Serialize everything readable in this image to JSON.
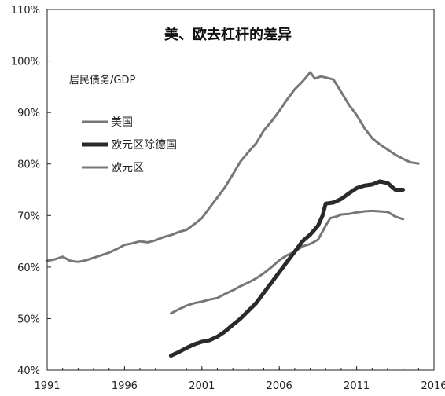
{
  "chart_data": {
    "type": "line",
    "title": "美、欧去杠杆的差异",
    "ylabel": "居民债务/GDP",
    "xlabel": "",
    "xlim": [
      1991,
      2016
    ],
    "ylim": [
      40,
      110
    ],
    "x_ticks": [
      "1991",
      "1996",
      "2001",
      "2006",
      "2011",
      "2016"
    ],
    "y_ticks": [
      "40%",
      "50%",
      "60%",
      "70%",
      "80%",
      "90%",
      "100%",
      "110%"
    ],
    "legend_position": "upper-left",
    "grid": false,
    "series": [
      {
        "name": "美国",
        "color": "#777777",
        "width": 3,
        "points": [
          [
            1991.0,
            61.2
          ],
          [
            1991.5,
            61.5
          ],
          [
            1992.0,
            62.0
          ],
          [
            1992.5,
            61.2
          ],
          [
            1993.0,
            61.0
          ],
          [
            1993.5,
            61.3
          ],
          [
            1994.0,
            61.8
          ],
          [
            1994.5,
            62.3
          ],
          [
            1995.0,
            62.8
          ],
          [
            1995.5,
            63.5
          ],
          [
            1996.0,
            64.3
          ],
          [
            1996.5,
            64.6
          ],
          [
            1997.0,
            65.0
          ],
          [
            1997.5,
            64.8
          ],
          [
            1998.0,
            65.2
          ],
          [
            1998.5,
            65.8
          ],
          [
            1999.0,
            66.2
          ],
          [
            1999.5,
            66.8
          ],
          [
            2000.0,
            67.2
          ],
          [
            2000.5,
            68.3
          ],
          [
            2001.0,
            69.5
          ],
          [
            2001.5,
            71.5
          ],
          [
            2002.0,
            73.5
          ],
          [
            2002.5,
            75.5
          ],
          [
            2003.0,
            78.0
          ],
          [
            2003.5,
            80.5
          ],
          [
            2004.0,
            82.3
          ],
          [
            2004.5,
            84.0
          ],
          [
            2005.0,
            86.5
          ],
          [
            2005.5,
            88.3
          ],
          [
            2006.0,
            90.3
          ],
          [
            2006.5,
            92.5
          ],
          [
            2007.0,
            94.5
          ],
          [
            2007.5,
            96.0
          ],
          [
            2008.0,
            97.8
          ],
          [
            2008.3,
            96.6
          ],
          [
            2008.7,
            97.0
          ],
          [
            2009.0,
            96.8
          ],
          [
            2009.5,
            96.4
          ],
          [
            2010.0,
            94.0
          ],
          [
            2010.5,
            91.5
          ],
          [
            2011.0,
            89.5
          ],
          [
            2011.5,
            87.0
          ],
          [
            2012.0,
            85.0
          ],
          [
            2012.5,
            83.8
          ],
          [
            2013.0,
            82.8
          ],
          [
            2013.5,
            81.8
          ],
          [
            2014.0,
            81.0
          ],
          [
            2014.5,
            80.3
          ],
          [
            2015.0,
            80.1
          ]
        ]
      },
      {
        "name": "欧元区除德国",
        "color": "#2a2a2a",
        "width": 5,
        "points": [
          [
            1999.0,
            42.8
          ],
          [
            1999.5,
            43.5
          ],
          [
            2000.0,
            44.3
          ],
          [
            2000.5,
            45.0
          ],
          [
            2001.0,
            45.5
          ],
          [
            2001.5,
            45.8
          ],
          [
            2002.0,
            46.5
          ],
          [
            2002.5,
            47.5
          ],
          [
            2003.0,
            48.8
          ],
          [
            2003.5,
            50.0
          ],
          [
            2004.0,
            51.5
          ],
          [
            2004.5,
            53.0
          ],
          [
            2005.0,
            55.0
          ],
          [
            2005.5,
            57.0
          ],
          [
            2006.0,
            59.0
          ],
          [
            2006.5,
            61.0
          ],
          [
            2007.0,
            63.0
          ],
          [
            2007.5,
            65.0
          ],
          [
            2008.0,
            66.3
          ],
          [
            2008.5,
            68.0
          ],
          [
            2008.8,
            70.0
          ],
          [
            2009.0,
            72.3
          ],
          [
            2009.5,
            72.5
          ],
          [
            2010.0,
            73.2
          ],
          [
            2010.5,
            74.3
          ],
          [
            2011.0,
            75.3
          ],
          [
            2011.5,
            75.8
          ],
          [
            2012.0,
            76.0
          ],
          [
            2012.5,
            76.6
          ],
          [
            2013.0,
            76.3
          ],
          [
            2013.5,
            75.0
          ],
          [
            2014.0,
            75.0
          ]
        ]
      },
      {
        "name": "欧元区",
        "color": "#777777",
        "width": 3,
        "points": [
          [
            1999.0,
            51.0
          ],
          [
            1999.5,
            51.8
          ],
          [
            2000.0,
            52.5
          ],
          [
            2000.5,
            53.0
          ],
          [
            2001.0,
            53.3
          ],
          [
            2001.5,
            53.7
          ],
          [
            2002.0,
            54.0
          ],
          [
            2002.5,
            54.8
          ],
          [
            2003.0,
            55.5
          ],
          [
            2003.5,
            56.3
          ],
          [
            2004.0,
            57.0
          ],
          [
            2004.5,
            57.8
          ],
          [
            2005.0,
            58.8
          ],
          [
            2005.5,
            60.0
          ],
          [
            2006.0,
            61.3
          ],
          [
            2006.5,
            62.3
          ],
          [
            2007.0,
            63.0
          ],
          [
            2007.5,
            64.0
          ],
          [
            2008.0,
            64.5
          ],
          [
            2008.5,
            65.3
          ],
          [
            2009.0,
            68.0
          ],
          [
            2009.3,
            69.5
          ],
          [
            2009.7,
            69.8
          ],
          [
            2010.0,
            70.2
          ],
          [
            2010.5,
            70.3
          ],
          [
            2011.0,
            70.6
          ],
          [
            2011.5,
            70.8
          ],
          [
            2012.0,
            70.9
          ],
          [
            2012.5,
            70.8
          ],
          [
            2013.0,
            70.7
          ],
          [
            2013.5,
            69.8
          ],
          [
            2014.0,
            69.3
          ]
        ]
      }
    ]
  }
}
